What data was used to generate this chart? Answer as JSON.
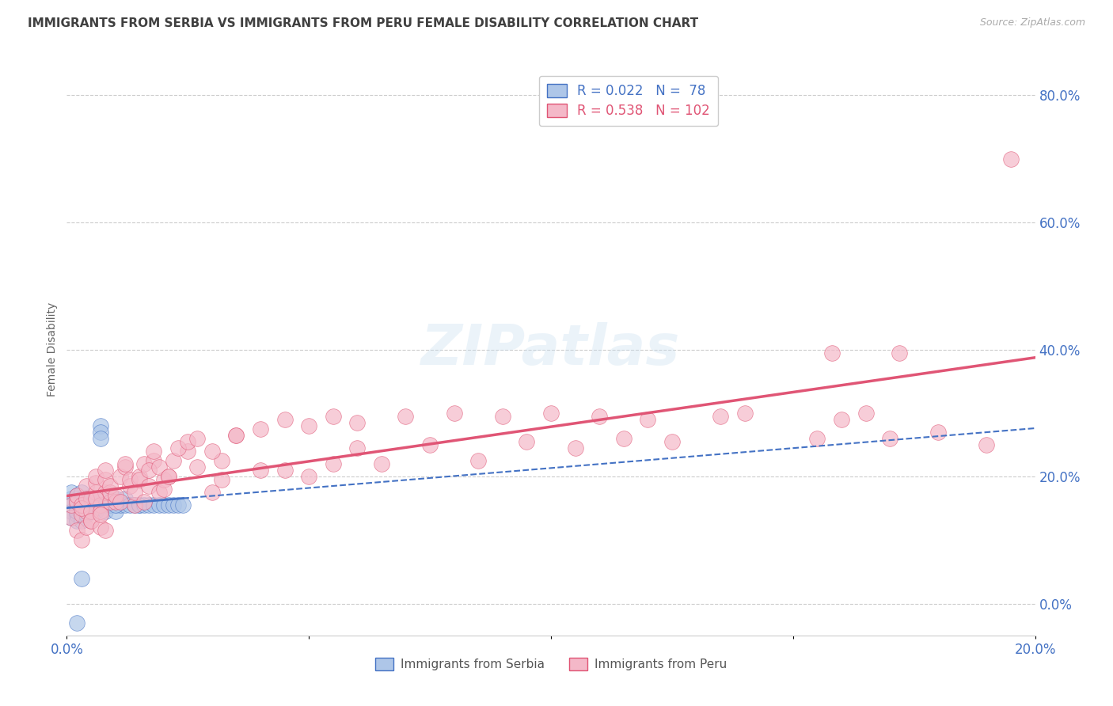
{
  "title": "IMMIGRANTS FROM SERBIA VS IMMIGRANTS FROM PERU FEMALE DISABILITY CORRELATION CHART",
  "source": "Source: ZipAtlas.com",
  "ylabel": "Female Disability",
  "xlabel_serbia": "Immigrants from Serbia",
  "xlabel_peru": "Immigrants from Peru",
  "serbia_R": 0.022,
  "serbia_N": 78,
  "peru_R": 0.538,
  "peru_N": 102,
  "serbia_color": "#aec6e8",
  "peru_color": "#f4b8c8",
  "serbia_line_color": "#4472c4",
  "peru_line_color": "#e05575",
  "axis_label_color": "#4472c4",
  "title_color": "#404040",
  "xmin": 0.0,
  "xmax": 0.2,
  "ymin": -0.05,
  "ymax": 0.85,
  "serbia_scatter_x": [
    0.001,
    0.001,
    0.001,
    0.001,
    0.001,
    0.002,
    0.002,
    0.002,
    0.002,
    0.002,
    0.002,
    0.002,
    0.002,
    0.002,
    0.002,
    0.002,
    0.002,
    0.003,
    0.003,
    0.003,
    0.003,
    0.003,
    0.003,
    0.003,
    0.003,
    0.003,
    0.003,
    0.003,
    0.004,
    0.004,
    0.004,
    0.004,
    0.004,
    0.004,
    0.004,
    0.005,
    0.005,
    0.005,
    0.005,
    0.005,
    0.006,
    0.006,
    0.006,
    0.006,
    0.006,
    0.007,
    0.007,
    0.007,
    0.007,
    0.008,
    0.008,
    0.008,
    0.009,
    0.009,
    0.01,
    0.01,
    0.01,
    0.011,
    0.011,
    0.012,
    0.012,
    0.013,
    0.014,
    0.015,
    0.015,
    0.016,
    0.017,
    0.018,
    0.019,
    0.02,
    0.021,
    0.022,
    0.023,
    0.024,
    0.01,
    0.005,
    0.003,
    0.002
  ],
  "serbia_scatter_y": [
    0.155,
    0.145,
    0.165,
    0.135,
    0.175,
    0.155,
    0.165,
    0.145,
    0.155,
    0.17,
    0.14,
    0.16,
    0.13,
    0.15,
    0.155,
    0.145,
    0.16,
    0.155,
    0.16,
    0.145,
    0.155,
    0.165,
    0.14,
    0.15,
    0.155,
    0.13,
    0.165,
    0.175,
    0.155,
    0.16,
    0.145,
    0.15,
    0.155,
    0.165,
    0.14,
    0.155,
    0.16,
    0.145,
    0.15,
    0.165,
    0.155,
    0.16,
    0.145,
    0.15,
    0.165,
    0.28,
    0.27,
    0.155,
    0.26,
    0.155,
    0.165,
    0.145,
    0.155,
    0.16,
    0.155,
    0.145,
    0.165,
    0.155,
    0.16,
    0.155,
    0.165,
    0.155,
    0.155,
    0.155,
    0.155,
    0.155,
    0.155,
    0.155,
    0.155,
    0.155,
    0.155,
    0.155,
    0.155,
    0.155,
    0.155,
    0.155,
    0.04,
    -0.03
  ],
  "peru_scatter_x": [
    0.001,
    0.002,
    0.003,
    0.001,
    0.002,
    0.003,
    0.004,
    0.002,
    0.003,
    0.004,
    0.005,
    0.003,
    0.004,
    0.005,
    0.006,
    0.004,
    0.005,
    0.006,
    0.007,
    0.005,
    0.006,
    0.007,
    0.008,
    0.006,
    0.007,
    0.008,
    0.009,
    0.007,
    0.008,
    0.009,
    0.01,
    0.008,
    0.009,
    0.011,
    0.01,
    0.012,
    0.011,
    0.013,
    0.012,
    0.014,
    0.013,
    0.015,
    0.014,
    0.016,
    0.015,
    0.017,
    0.016,
    0.018,
    0.017,
    0.019,
    0.018,
    0.02,
    0.019,
    0.021,
    0.02,
    0.022,
    0.021,
    0.025,
    0.023,
    0.027,
    0.025,
    0.03,
    0.027,
    0.032,
    0.03,
    0.035,
    0.032,
    0.04,
    0.035,
    0.045,
    0.04,
    0.05,
    0.045,
    0.055,
    0.05,
    0.06,
    0.055,
    0.065,
    0.06,
    0.075,
    0.07,
    0.085,
    0.08,
    0.095,
    0.09,
    0.105,
    0.1,
    0.115,
    0.11,
    0.125,
    0.12,
    0.135,
    0.14,
    0.155,
    0.16,
    0.17,
    0.158,
    0.165,
    0.172,
    0.18,
    0.19,
    0.195
  ],
  "peru_scatter_y": [
    0.135,
    0.115,
    0.14,
    0.155,
    0.16,
    0.1,
    0.145,
    0.17,
    0.155,
    0.12,
    0.165,
    0.15,
    0.185,
    0.13,
    0.175,
    0.165,
    0.145,
    0.19,
    0.155,
    0.13,
    0.2,
    0.145,
    0.175,
    0.165,
    0.12,
    0.195,
    0.16,
    0.14,
    0.21,
    0.175,
    0.16,
    0.115,
    0.185,
    0.2,
    0.17,
    0.215,
    0.16,
    0.185,
    0.22,
    0.155,
    0.195,
    0.2,
    0.175,
    0.22,
    0.195,
    0.185,
    0.16,
    0.225,
    0.21,
    0.175,
    0.24,
    0.195,
    0.215,
    0.2,
    0.18,
    0.225,
    0.2,
    0.24,
    0.245,
    0.215,
    0.255,
    0.175,
    0.26,
    0.225,
    0.24,
    0.265,
    0.195,
    0.21,
    0.265,
    0.21,
    0.275,
    0.2,
    0.29,
    0.22,
    0.28,
    0.245,
    0.295,
    0.22,
    0.285,
    0.25,
    0.295,
    0.225,
    0.3,
    0.255,
    0.295,
    0.245,
    0.3,
    0.26,
    0.295,
    0.255,
    0.29,
    0.295,
    0.3,
    0.26,
    0.29,
    0.26,
    0.395,
    0.3,
    0.395,
    0.27,
    0.25,
    0.7
  ],
  "grid_color": "#cccccc",
  "tick_color": "#4472c4",
  "ytick_values": [
    0.0,
    0.2,
    0.4,
    0.6,
    0.8
  ],
  "ytick_labels": [
    "0.0%",
    "20.0%",
    "40.0%",
    "60.0%",
    "80.0%"
  ]
}
